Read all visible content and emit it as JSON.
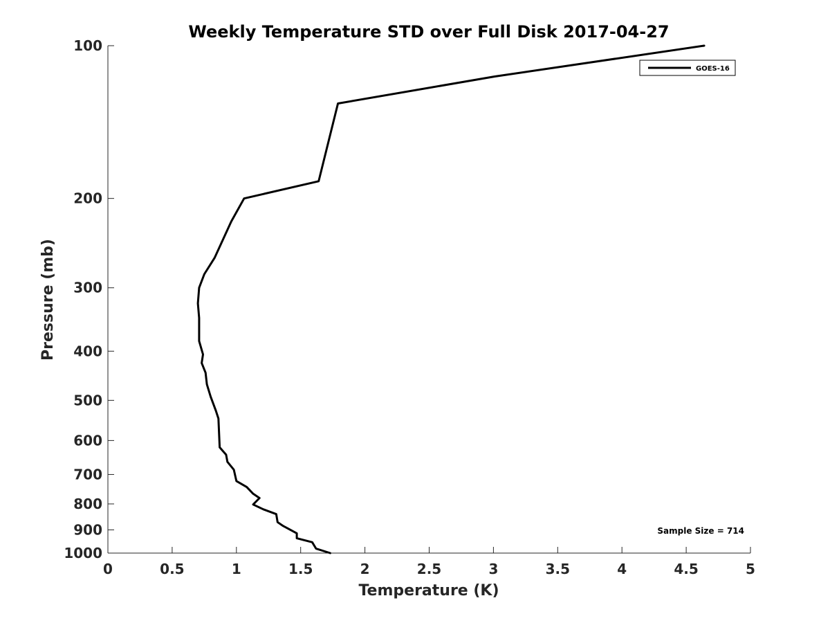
{
  "chart_data": {
    "type": "line",
    "title": "Weekly Temperature STD over Full Disk 2017-04-27",
    "xlabel": "Temperature (K)",
    "ylabel": "Pressure (mb)",
    "xlim": [
      0,
      5
    ],
    "ylim": [
      100,
      1000
    ],
    "y_scale": "log",
    "y_reversed": true,
    "grid": false,
    "legend_position": "top-right",
    "x_ticks": [
      0,
      0.5,
      1,
      1.5,
      2,
      2.5,
      3,
      3.5,
      4,
      4.5,
      5
    ],
    "x_tick_labels": [
      "0",
      "0.5",
      "1",
      "1.5",
      "2",
      "2.5",
      "3",
      "3.5",
      "4",
      "4.5",
      "5"
    ],
    "y_ticks": [
      100,
      200,
      300,
      400,
      500,
      600,
      700,
      800,
      900,
      1000
    ],
    "y_tick_labels": [
      "100",
      "200",
      "300",
      "400",
      "500",
      "600",
      "700",
      "800",
      "900",
      "1000"
    ],
    "series": [
      {
        "name": "GOES-16",
        "color": "#000000",
        "points": [
          [
            4.64,
            100
          ],
          [
            3.01,
            115
          ],
          [
            1.79,
            130
          ],
          [
            1.64,
            185
          ],
          [
            1.06,
            200
          ],
          [
            0.96,
            222
          ],
          [
            0.83,
            262
          ],
          [
            0.75,
            282
          ],
          [
            0.71,
            300
          ],
          [
            0.7,
            322
          ],
          [
            0.71,
            344
          ],
          [
            0.71,
            382
          ],
          [
            0.74,
            406
          ],
          [
            0.73,
            422
          ],
          [
            0.76,
            441
          ],
          [
            0.77,
            465
          ],
          [
            0.8,
            492
          ],
          [
            0.84,
            524
          ],
          [
            0.86,
            543
          ],
          [
            0.87,
            619
          ],
          [
            0.92,
            640
          ],
          [
            0.93,
            661
          ],
          [
            0.98,
            685
          ],
          [
            1.0,
            721
          ],
          [
            1.08,
            741
          ],
          [
            1.13,
            764
          ],
          [
            1.18,
            779
          ],
          [
            1.13,
            802
          ],
          [
            1.21,
            820
          ],
          [
            1.31,
            838
          ],
          [
            1.32,
            869
          ],
          [
            1.36,
            883
          ],
          [
            1.47,
            914
          ],
          [
            1.47,
            935
          ],
          [
            1.59,
            952
          ],
          [
            1.62,
            980
          ],
          [
            1.73,
            1000
          ]
        ]
      }
    ],
    "annotations": [
      {
        "text": "Sample Size = 714",
        "position": "bottom-right"
      }
    ]
  }
}
